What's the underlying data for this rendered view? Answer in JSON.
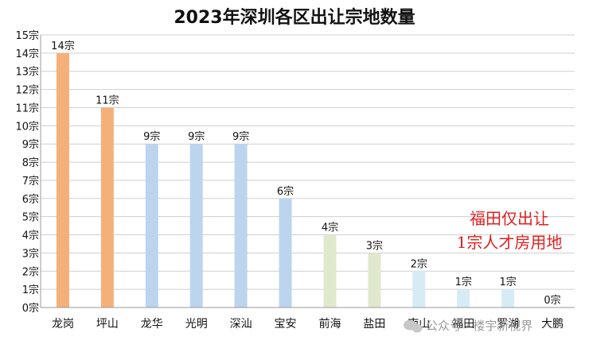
{
  "chart_data": {
    "type": "bar",
    "title": "2023年深圳各区出让宗地数量",
    "xlabel": "",
    "ylabel": "",
    "unit": "宗",
    "categories": [
      "龙岗",
      "坪山",
      "龙华",
      "光明",
      "深汕",
      "宝安",
      "前海",
      "盐田",
      "南山",
      "福田",
      "罗湖",
      "大鹏"
    ],
    "values": [
      14,
      11,
      9,
      9,
      9,
      6,
      4,
      3,
      2,
      1,
      1,
      0
    ],
    "data_labels": [
      "14宗",
      "11宗",
      "9宗",
      "9宗",
      "9宗",
      "6宗",
      "4宗",
      "3宗",
      "2宗",
      "1宗",
      "1宗",
      "0宗"
    ],
    "y_ticks": [
      "0宗",
      "1宗",
      "2宗",
      "3宗",
      "4宗",
      "5宗",
      "6宗",
      "7宗",
      "8宗",
      "9宗",
      "10宗",
      "11宗",
      "12宗",
      "13宗",
      "14宗",
      "15宗"
    ],
    "ylim": [
      0,
      15
    ],
    "grid": true,
    "bar_colors": [
      "#f5b07a",
      "#f5b07a",
      "#bcd4ee",
      "#bcd4ee",
      "#bcd4ee",
      "#bcd4ee",
      "#e1e9cc",
      "#e1e9cc",
      "#d6ebf6",
      "#d6ebf6",
      "#d6ebf6",
      "#d6ebf6"
    ]
  },
  "annotation": {
    "line1": "福田仅出让",
    "line2": "1宗人才房用地",
    "color": "#e02020"
  },
  "watermark": {
    "text": "公众号 · 楼宇新视界",
    "icon": "wechat-icon"
  }
}
